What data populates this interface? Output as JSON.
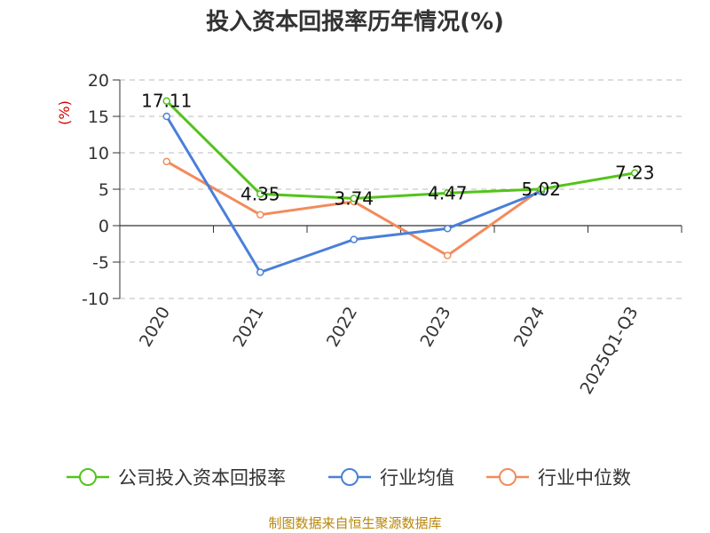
{
  "chart_data": {
    "type": "line",
    "title": "投入资本回报率历年情况(%)",
    "ylabel": "(%)",
    "xlabel": "",
    "categories": [
      "2020",
      "2021",
      "2022",
      "2023",
      "2024",
      "2025Q1-Q3"
    ],
    "ylim": [
      -10,
      20
    ],
    "yticks": [
      20,
      15,
      10,
      5,
      0,
      -5,
      -10
    ],
    "grid": true,
    "legend_position": "bottom",
    "series": [
      {
        "name": "公司投入资本回报率",
        "color": "#52c41a",
        "values": [
          17.11,
          4.35,
          3.74,
          4.47,
          5.02,
          7.23
        ],
        "labels": [
          "17.11",
          "4.35",
          "3.74",
          "4.47",
          "5.02",
          "7.23"
        ]
      },
      {
        "name": "行业均值",
        "color": "#4a7fd9",
        "values": [
          15.0,
          -6.4,
          -1.9,
          -0.4,
          4.7,
          null
        ]
      },
      {
        "name": "行业中位数",
        "color": "#f28b5b",
        "values": [
          8.8,
          1.5,
          3.3,
          -4.1,
          5.0,
          null
        ]
      }
    ]
  },
  "source": "制图数据来自恒生聚源数据库"
}
